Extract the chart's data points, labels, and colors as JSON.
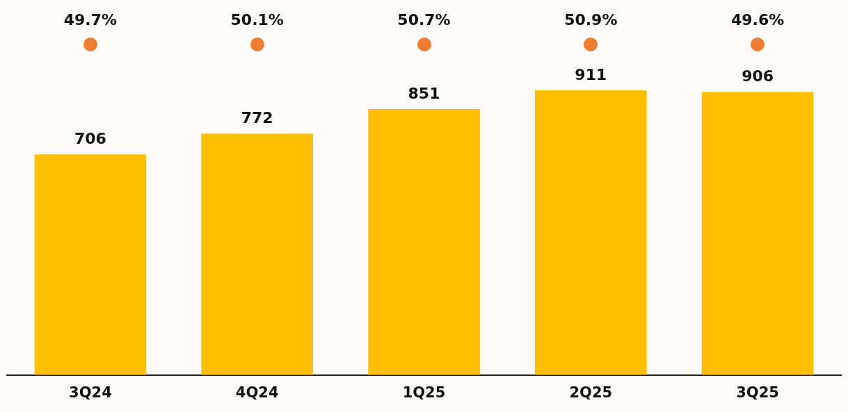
{
  "chart_data": {
    "type": "bar",
    "categories": [
      "3Q24",
      "4Q24",
      "1Q25",
      "2Q25",
      "3Q25"
    ],
    "series": [
      {
        "color": "#fdbf00",
        "values": [
          706,
          772,
          851,
          911,
          906
        ]
      }
    ],
    "data_labels": true,
    "annotations": [
      "49.7%",
      "50.1%",
      "50.7%",
      "50.9%",
      "49.6%"
    ],
    "tick_labels": "x"
  }
}
